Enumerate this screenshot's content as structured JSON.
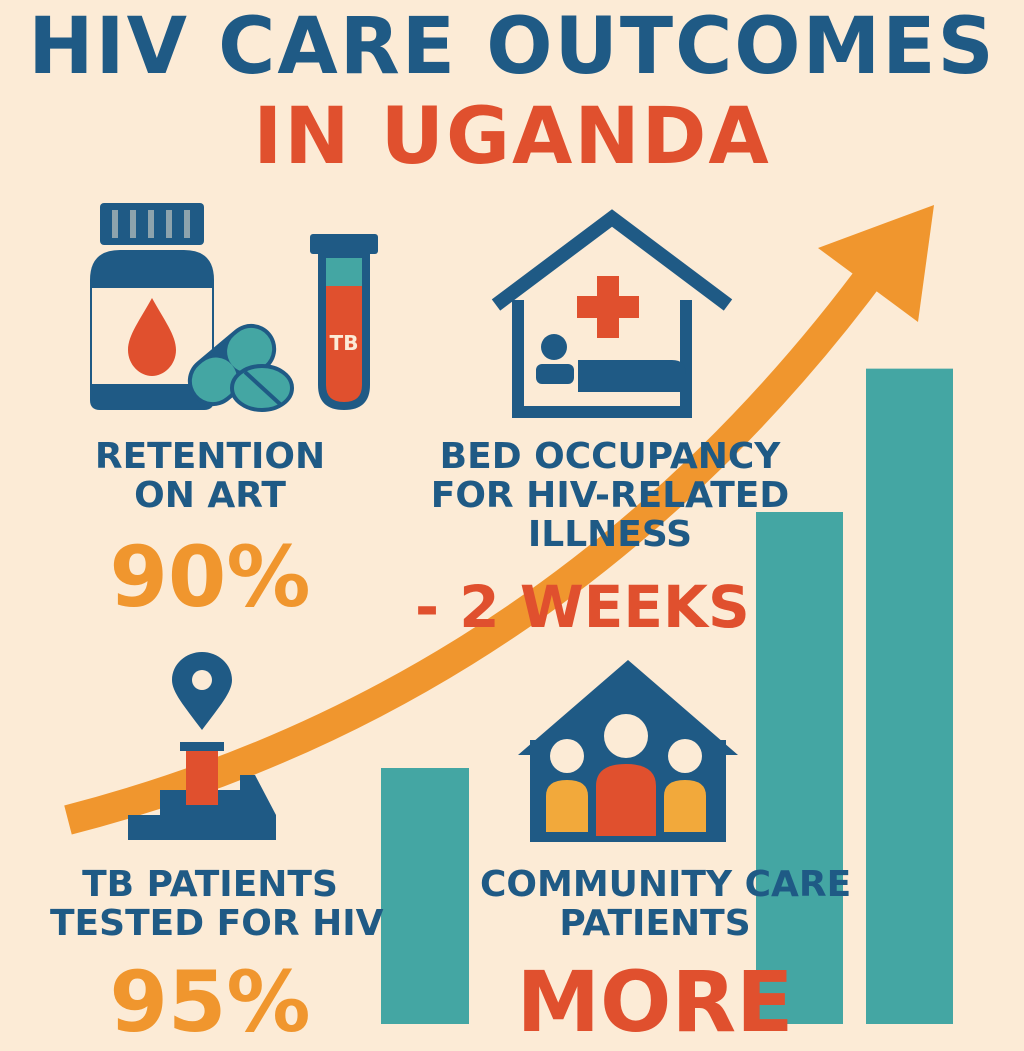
{
  "title": {
    "line1": "HIV CARE OUTCOMES",
    "line2": "IN UGANDA"
  },
  "colors": {
    "background": "#fcebd6",
    "navy": "#1f5a85",
    "red": "#e0502e",
    "orange": "#f0962e",
    "teal": "#44a6a3",
    "mustard": "#f2a93b"
  },
  "stats": {
    "retention": {
      "label_line1": "RETENTION",
      "label_line2": "ON ART",
      "value": "90%",
      "icons": [
        "pill-bottle-icon",
        "capsule-icon",
        "test-tube-icon"
      ],
      "tube_text": "TB"
    },
    "bed_occupancy": {
      "label_line1": "BED OCCUPANCY",
      "label_line2": "FOR HIV-RELATED",
      "label_line3": "ILLNESS",
      "value": "- 2 WEEKS",
      "icons": [
        "hospital-icon"
      ]
    },
    "tb_tested": {
      "label_line1": "TB PATIENTS",
      "label_line2": "TESTED FOR HIV",
      "value": "95%",
      "icons": [
        "location-pin-icon",
        "clinic-icon"
      ]
    },
    "community": {
      "label_line1": "COMMUNITY CARE",
      "label_line2": "PATIENTS",
      "value": "MORE",
      "icons": [
        "community-house-icon"
      ]
    }
  },
  "chart_data": {
    "type": "bar",
    "categories": [
      "",
      "",
      ""
    ],
    "values": [
      25,
      50,
      64
    ],
    "xlabel": "",
    "ylabel": "",
    "ylim": [
      0,
      100
    ],
    "trend": "up"
  }
}
